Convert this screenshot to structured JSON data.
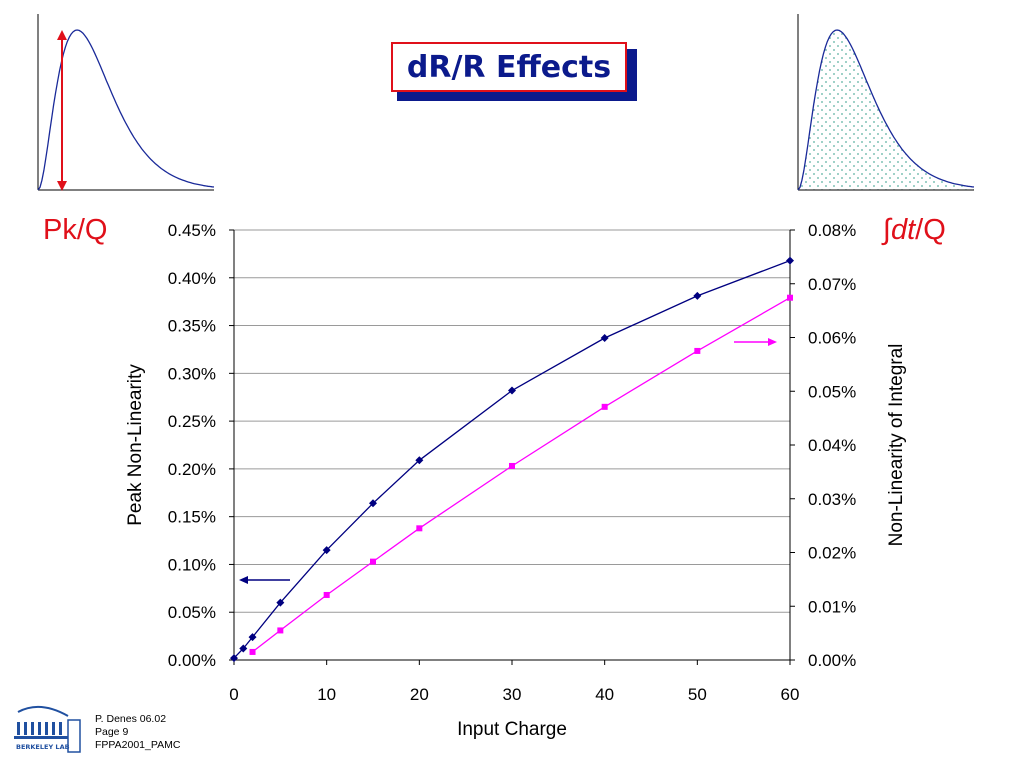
{
  "slide": {
    "title": "dR/R Effects",
    "left_label": "Pk/Q",
    "right_label_integral": "∫",
    "right_label_dt": "dt",
    "right_label_q": "/Q",
    "footer": {
      "author": "P. Denes 06.02",
      "page": "Page 9",
      "doc": "FPPA2001_PAMC"
    },
    "logo_text": "BERKELEY LAB",
    "colors": {
      "title_text": "#0b1a8c",
      "title_border": "#e0101a",
      "title_shadow": "#0b1a8c",
      "label_red": "#e0101a",
      "pulse_curve": "#1a2a99",
      "area_dots": "#5ab0a0"
    }
  },
  "chart_data": {
    "type": "line",
    "xlabel": "Input Charge",
    "ylabel_left": "Peak Non-Linearity",
    "ylabel_right": "Non-Linearity of Integral",
    "xlim": [
      0,
      60
    ],
    "xticks": [
      "0",
      "10",
      "20",
      "30",
      "40",
      "50",
      "60"
    ],
    "ylim_left": [
      0,
      0.45
    ],
    "yticks_left": [
      "0.00%",
      "0.05%",
      "0.10%",
      "0.15%",
      "0.20%",
      "0.25%",
      "0.30%",
      "0.35%",
      "0.40%",
      "0.45%"
    ],
    "ylim_right": [
      0,
      0.08
    ],
    "yticks_right": [
      "0.00%",
      "0.01%",
      "0.02%",
      "0.03%",
      "0.04%",
      "0.05%",
      "0.06%",
      "0.07%",
      "0.08%"
    ],
    "grid": true,
    "series": [
      {
        "axis": "left",
        "color": "#000080",
        "marker": "diamond",
        "x": [
          0,
          1,
          2,
          5,
          10,
          15,
          20,
          30,
          40,
          50,
          60
        ],
        "y": [
          0.002,
          0.012,
          0.024,
          0.06,
          0.115,
          0.164,
          0.209,
          0.282,
          0.337,
          0.381,
          0.418
        ]
      },
      {
        "axis": "right",
        "color": "#ff00ff",
        "marker": "square",
        "x": [
          2,
          5,
          10,
          15,
          20,
          30,
          40,
          50,
          60
        ],
        "y": [
          0.0015,
          0.0055,
          0.0121,
          0.0183,
          0.0245,
          0.0361,
          0.0471,
          0.0575,
          0.0674
        ]
      }
    ]
  }
}
